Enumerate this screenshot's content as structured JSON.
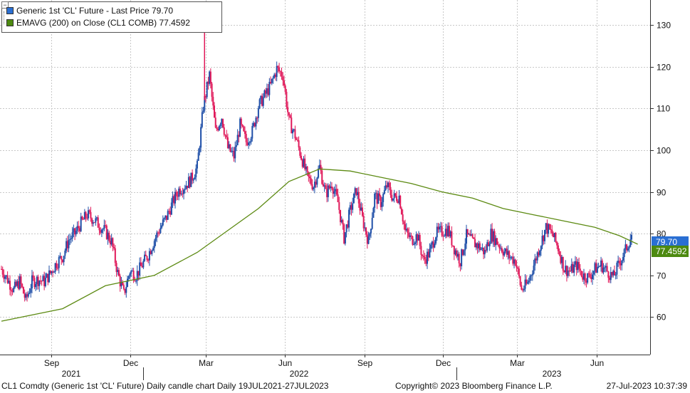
{
  "legend": {
    "series1": "Generic 1st 'CL' Future - Last Price 79.70",
    "series2": "EMAVG (200)  on Close (CL1 COMB)  77.4592"
  },
  "colors": {
    "up": "#1f4fa8",
    "down": "#e0195a",
    "ema": "#5c8a12",
    "grid": "#c8c8c8",
    "priceBadge": "#2a6fd3",
    "emaBadge": "#4d8a10"
  },
  "footer": {
    "left": "CL1 Comdty (Generic 1st 'CL' Future) Daily candle chart  Daily 19JUL2021-27JUL2023",
    "center": "Copyright© 2023 Bloomberg Finance L.P.",
    "right": "27-Jul-2023 10:37:39"
  },
  "badges": {
    "price": "79.70",
    "ema": "77.4592"
  },
  "chart_data": {
    "type": "line",
    "title": "Generic 1st 'CL' Future - Daily candle chart",
    "xlabel": "",
    "ylabel": "",
    "ylim": [
      51,
      136
    ],
    "yticks": [
      60,
      70,
      80,
      90,
      100,
      110,
      120,
      130
    ],
    "month_ticks": [
      "Sep",
      "Dec",
      "Mar",
      "Jun",
      "Sep",
      "Dec",
      "Mar",
      "Jun"
    ],
    "year_labels": [
      "2021",
      "2022",
      "2023"
    ],
    "series": [
      {
        "name": "Generic 1st 'CL' Future - Last Price",
        "note": "approximate weekly closes read from daily candles",
        "values": [
          71.5,
          69.0,
          66.5,
          68.5,
          64.0,
          68.5,
          69.0,
          68.5,
          70.5,
          73.0,
          74.5,
          78.5,
          80.0,
          82.5,
          84.5,
          83.5,
          82.0,
          80.5,
          78.0,
          70.5,
          65.5,
          71.0,
          70.0,
          72.5,
          75.0,
          78.5,
          81.5,
          84.0,
          87.5,
          90.5,
          91.5,
          93.0,
          96.0,
          110.5,
          118.0,
          104.5,
          108.0,
          100.5,
          98.5,
          106.0,
          102.0,
          104.5,
          110.5,
          113.0,
          115.5,
          119.5,
          118.0,
          107.0,
          103.5,
          98.5,
          93.5,
          91.5,
          96.0,
          89.5,
          92.0,
          87.5,
          79.0,
          85.5,
          90.5,
          83.5,
          78.0,
          89.0,
          87.5,
          91.5,
          88.5,
          89.0,
          80.5,
          78.5,
          79.5,
          73.5,
          75.5,
          80.0,
          80.5,
          81.0,
          76.5,
          73.5,
          79.5,
          78.0,
          77.0,
          75.5,
          80.0,
          78.0,
          76.0,
          74.5,
          73.5,
          66.5,
          68.0,
          72.5,
          77.0,
          81.5,
          80.0,
          76.5,
          71.5,
          71.0,
          72.5,
          70.0,
          69.5,
          71.5,
          72.5,
          71.0,
          69.5,
          73.0,
          76.0,
          79.7
        ]
      },
      {
        "name": "EMAVG (200) on Close (CL1 COMB)",
        "x_weeks": [
          0,
          10,
          17,
          25,
          32,
          42,
          47,
          52,
          57,
          62,
          67,
          72,
          77,
          82,
          87,
          92,
          97,
          101,
          104
        ],
        "values": [
          59.0,
          62.0,
          67.5,
          70.0,
          75.5,
          86.0,
          92.5,
          95.5,
          95.0,
          93.5,
          92.0,
          90.0,
          88.5,
          86.0,
          84.5,
          83.0,
          81.5,
          79.5,
          77.46
        ]
      }
    ]
  }
}
